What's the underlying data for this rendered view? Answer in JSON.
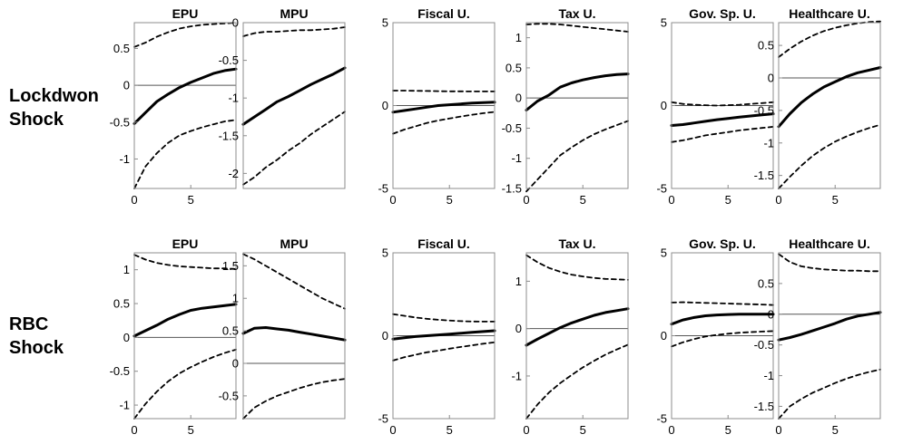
{
  "rows": [
    {
      "label_line1": "Lockdwon",
      "label_line2": "Shock"
    },
    {
      "label_line1": "RBC",
      "label_line2": "Shock"
    }
  ],
  "styles": {
    "line_color": "#000000",
    "zero_line_color": "#555555",
    "frame_color": "#8c8c8c"
  },
  "chart_data": [
    {
      "type": "line",
      "title": "EPU",
      "row": 0,
      "col": 0,
      "x": [
        0,
        1,
        2,
        3,
        4,
        5,
        6,
        7,
        8,
        9
      ],
      "xlim": [
        0,
        9
      ],
      "ylim": [
        -1.4,
        0.85
      ],
      "xticks": [
        "0",
        "5"
      ],
      "xtick_values": [
        0,
        5
      ],
      "yticks": [
        "-1",
        "-0.5",
        "0",
        "0.5"
      ],
      "ytick_values": [
        -1,
        -0.5,
        0,
        0.5
      ],
      "series": [
        {
          "style": "dashed",
          "values": [
            0.52,
            0.58,
            0.66,
            0.72,
            0.77,
            0.8,
            0.82,
            0.83,
            0.84,
            0.85
          ]
        },
        {
          "style": "solid",
          "values": [
            -0.52,
            -0.37,
            -0.22,
            -0.12,
            -0.03,
            0.04,
            0.1,
            0.16,
            0.2,
            0.22
          ]
        },
        {
          "style": "dashed",
          "values": [
            -1.4,
            -1.1,
            -0.92,
            -0.78,
            -0.68,
            -0.62,
            -0.57,
            -0.53,
            -0.49,
            -0.47
          ]
        }
      ]
    },
    {
      "type": "line",
      "title": "MPU",
      "row": 0,
      "col": 1,
      "x": [
        0,
        1,
        2,
        3,
        4,
        5,
        6,
        7,
        8,
        9
      ],
      "xlim": [
        0,
        9
      ],
      "ylim": [
        -2.2,
        0
      ],
      "xticks": [],
      "xtick_values": [],
      "yticks": [
        "-2",
        "-1.5",
        "-1",
        "-0.5",
        "0"
      ],
      "ytick_values": [
        -2,
        -1.5,
        -1,
        -0.5,
        0
      ],
      "series": [
        {
          "style": "dashed",
          "values": [
            -0.18,
            -0.14,
            -0.12,
            -0.12,
            -0.11,
            -0.1,
            -0.1,
            -0.09,
            -0.08,
            -0.06
          ]
        },
        {
          "style": "solid",
          "values": [
            -1.35,
            -1.25,
            -1.15,
            -1.05,
            -0.98,
            -0.9,
            -0.82,
            -0.75,
            -0.68,
            -0.6
          ]
        },
        {
          "style": "dashed",
          "values": [
            -2.15,
            -2.05,
            -1.92,
            -1.82,
            -1.7,
            -1.6,
            -1.48,
            -1.38,
            -1.28,
            -1.18
          ]
        }
      ]
    },
    {
      "type": "line",
      "title": "Fiscal U.",
      "row": 0,
      "col": 2,
      "x": [
        0,
        1,
        2,
        3,
        4,
        5,
        6,
        7,
        8,
        9
      ],
      "xlim": [
        0,
        9
      ],
      "ylim": [
        -5,
        5
      ],
      "xticks": [
        "0",
        "5"
      ],
      "xtick_values": [
        0,
        5
      ],
      "yticks": [
        "-5",
        "0",
        "5"
      ],
      "ytick_values": [
        -5,
        0,
        5
      ],
      "series": [
        {
          "style": "dashed",
          "values": [
            0.9,
            0.9,
            0.89,
            0.88,
            0.87,
            0.86,
            0.86,
            0.85,
            0.85,
            0.85
          ]
        },
        {
          "style": "solid",
          "values": [
            -0.4,
            -0.3,
            -0.2,
            -0.1,
            0.0,
            0.05,
            0.1,
            0.15,
            0.18,
            0.2
          ]
        },
        {
          "style": "dashed",
          "values": [
            -1.7,
            -1.45,
            -1.25,
            -1.05,
            -0.9,
            -0.78,
            -0.66,
            -0.56,
            -0.46,
            -0.38
          ]
        }
      ]
    },
    {
      "type": "line",
      "title": "Tax U.",
      "row": 0,
      "col": 3,
      "x": [
        0,
        1,
        2,
        3,
        4,
        5,
        6,
        7,
        8,
        9
      ],
      "xlim": [
        0,
        9
      ],
      "ylim": [
        -1.5,
        1.25
      ],
      "xticks": [
        "0",
        "5"
      ],
      "xtick_values": [
        0,
        5
      ],
      "yticks": [
        "-1.5",
        "-1",
        "-0.5",
        "0",
        "0.5",
        "1"
      ],
      "ytick_values": [
        -1.5,
        -1,
        -0.5,
        0,
        0.5,
        1
      ],
      "series": [
        {
          "style": "dashed",
          "values": [
            1.22,
            1.23,
            1.23,
            1.22,
            1.2,
            1.18,
            1.16,
            1.14,
            1.12,
            1.1
          ]
        },
        {
          "style": "solid",
          "values": [
            -0.2,
            -0.05,
            0.05,
            0.18,
            0.25,
            0.3,
            0.34,
            0.37,
            0.39,
            0.4
          ]
        },
        {
          "style": "dashed",
          "values": [
            -1.55,
            -1.35,
            -1.15,
            -0.95,
            -0.82,
            -0.7,
            -0.6,
            -0.52,
            -0.45,
            -0.38
          ]
        }
      ]
    },
    {
      "type": "line",
      "title": "Gov. Sp. U.",
      "row": 0,
      "col": 4,
      "x": [
        0,
        1,
        2,
        3,
        4,
        5,
        6,
        7,
        8,
        9
      ],
      "xlim": [
        0,
        9
      ],
      "ylim": [
        -5,
        5
      ],
      "xticks": [
        "0",
        "5"
      ],
      "xtick_values": [
        0,
        5
      ],
      "yticks": [
        "-5",
        "0",
        "5"
      ],
      "ytick_values": [
        -5,
        0,
        5
      ],
      "series": [
        {
          "style": "dashed",
          "values": [
            0.2,
            0.1,
            0.05,
            0.02,
            0.0,
            0.02,
            0.05,
            0.1,
            0.15,
            0.2
          ]
        },
        {
          "style": "solid",
          "values": [
            -1.2,
            -1.15,
            -1.05,
            -0.95,
            -0.85,
            -0.78,
            -0.7,
            -0.63,
            -0.56,
            -0.5
          ]
        },
        {
          "style": "dashed",
          "values": [
            -2.2,
            -2.1,
            -1.95,
            -1.8,
            -1.7,
            -1.6,
            -1.5,
            -1.42,
            -1.35,
            -1.28
          ]
        }
      ]
    },
    {
      "type": "line",
      "title": "Healthcare U.",
      "row": 0,
      "col": 5,
      "x": [
        0,
        1,
        2,
        3,
        4,
        5,
        6,
        7,
        8,
        9
      ],
      "xlim": [
        0,
        9
      ],
      "ylim": [
        -1.7,
        0.85
      ],
      "xticks": [
        "0",
        "5"
      ],
      "xtick_values": [
        0,
        5
      ],
      "yticks": [
        "-1.5",
        "-1",
        "-0.5",
        "0",
        "0.5"
      ],
      "ytick_values": [
        -1.5,
        -1,
        -0.5,
        0,
        0.5
      ],
      "series": [
        {
          "style": "dashed",
          "values": [
            0.32,
            0.45,
            0.56,
            0.65,
            0.72,
            0.77,
            0.81,
            0.84,
            0.86,
            0.87
          ]
        },
        {
          "style": "solid",
          "values": [
            -0.75,
            -0.55,
            -0.38,
            -0.25,
            -0.14,
            -0.06,
            0.02,
            0.08,
            0.12,
            0.16
          ]
        },
        {
          "style": "dashed",
          "values": [
            -1.7,
            -1.52,
            -1.35,
            -1.2,
            -1.08,
            -0.98,
            -0.9,
            -0.83,
            -0.77,
            -0.72
          ]
        }
      ]
    },
    {
      "type": "line",
      "title": "EPU",
      "row": 1,
      "col": 0,
      "x": [
        0,
        1,
        2,
        3,
        4,
        5,
        6,
        7,
        8,
        9
      ],
      "xlim": [
        0,
        9
      ],
      "ylim": [
        -1.2,
        1.25
      ],
      "xticks": [
        "0",
        "5"
      ],
      "xtick_values": [
        0,
        5
      ],
      "yticks": [
        "-1",
        "-0.5",
        "0",
        "0.5",
        "1"
      ],
      "ytick_values": [
        -1,
        -0.5,
        0,
        0.5,
        1
      ],
      "series": [
        {
          "style": "dashed",
          "values": [
            1.22,
            1.15,
            1.1,
            1.07,
            1.05,
            1.04,
            1.03,
            1.02,
            1.02,
            1.01
          ]
        },
        {
          "style": "solid",
          "values": [
            0.02,
            0.1,
            0.18,
            0.27,
            0.34,
            0.4,
            0.43,
            0.45,
            0.47,
            0.49
          ]
        },
        {
          "style": "dashed",
          "values": [
            -1.2,
            -0.98,
            -0.8,
            -0.65,
            -0.53,
            -0.44,
            -0.36,
            -0.29,
            -0.23,
            -0.18
          ]
        }
      ]
    },
    {
      "type": "line",
      "title": "MPU",
      "row": 1,
      "col": 1,
      "x": [
        0,
        1,
        2,
        3,
        4,
        5,
        6,
        7,
        8,
        9
      ],
      "xlim": [
        0,
        9
      ],
      "ylim": [
        -0.85,
        1.7
      ],
      "xticks": [],
      "xtick_values": [],
      "yticks": [
        "-0.5",
        "0",
        "0.5",
        "1",
        "1.5"
      ],
      "ytick_values": [
        -0.5,
        0,
        0.5,
        1,
        1.5
      ],
      "series": [
        {
          "style": "dashed",
          "values": [
            1.68,
            1.6,
            1.5,
            1.4,
            1.3,
            1.2,
            1.1,
            1.0,
            0.92,
            0.84
          ]
        },
        {
          "style": "solid",
          "values": [
            0.46,
            0.54,
            0.55,
            0.53,
            0.51,
            0.48,
            0.45,
            0.42,
            0.39,
            0.36
          ]
        },
        {
          "style": "dashed",
          "values": [
            -0.85,
            -0.68,
            -0.58,
            -0.5,
            -0.44,
            -0.38,
            -0.33,
            -0.29,
            -0.26,
            -0.24
          ]
        }
      ]
    },
    {
      "type": "line",
      "title": "Fiscal U.",
      "row": 1,
      "col": 2,
      "x": [
        0,
        1,
        2,
        3,
        4,
        5,
        6,
        7,
        8,
        9
      ],
      "xlim": [
        0,
        9
      ],
      "ylim": [
        -5,
        5
      ],
      "xticks": [
        "0",
        "5"
      ],
      "xtick_values": [
        0,
        5
      ],
      "yticks": [
        "-5",
        "0",
        "5"
      ],
      "ytick_values": [
        -5,
        0,
        5
      ],
      "series": [
        {
          "style": "dashed",
          "values": [
            1.3,
            1.2,
            1.1,
            1.02,
            0.96,
            0.92,
            0.88,
            0.86,
            0.85,
            0.85
          ]
        },
        {
          "style": "solid",
          "values": [
            -0.2,
            -0.12,
            -0.05,
            0.0,
            0.05,
            0.1,
            0.15,
            0.2,
            0.25,
            0.3
          ]
        },
        {
          "style": "dashed",
          "values": [
            -1.5,
            -1.3,
            -1.15,
            -1.0,
            -0.9,
            -0.78,
            -0.68,
            -0.58,
            -0.48,
            -0.4
          ]
        }
      ]
    },
    {
      "type": "line",
      "title": "Tax U.",
      "row": 1,
      "col": 3,
      "x": [
        0,
        1,
        2,
        3,
        4,
        5,
        6,
        7,
        8,
        9
      ],
      "xlim": [
        0,
        9
      ],
      "ylim": [
        -1.9,
        1.6
      ],
      "xticks": [
        "0",
        "5"
      ],
      "xtick_values": [
        0,
        5
      ],
      "yticks": [
        "-1",
        "0",
        "1"
      ],
      "ytick_values": [
        -1,
        0,
        1
      ],
      "series": [
        {
          "style": "dashed",
          "values": [
            1.55,
            1.4,
            1.28,
            1.2,
            1.14,
            1.1,
            1.07,
            1.05,
            1.04,
            1.03
          ]
        },
        {
          "style": "solid",
          "values": [
            -0.35,
            -0.22,
            -0.1,
            0.02,
            0.12,
            0.2,
            0.28,
            0.34,
            0.38,
            0.42
          ]
        },
        {
          "style": "dashed",
          "values": [
            -1.9,
            -1.6,
            -1.35,
            -1.15,
            -0.98,
            -0.82,
            -0.68,
            -0.55,
            -0.44,
            -0.34
          ]
        }
      ]
    },
    {
      "type": "line",
      "title": "Gov. Sp. U.",
      "row": 1,
      "col": 4,
      "x": [
        0,
        1,
        2,
        3,
        4,
        5,
        6,
        7,
        8,
        9
      ],
      "xlim": [
        0,
        9
      ],
      "ylim": [
        -5,
        5
      ],
      "xticks": [
        "0",
        "5"
      ],
      "xtick_values": [
        0,
        5
      ],
      "yticks": [
        "-5",
        "0",
        "5"
      ],
      "ytick_values": [
        -5,
        0,
        5
      ],
      "series": [
        {
          "style": "dashed",
          "values": [
            2.0,
            2.02,
            2.0,
            1.98,
            1.96,
            1.94,
            1.92,
            1.9,
            1.88,
            1.85
          ]
        },
        {
          "style": "solid",
          "values": [
            0.7,
            0.95,
            1.1,
            1.2,
            1.25,
            1.28,
            1.3,
            1.3,
            1.3,
            1.3
          ]
        },
        {
          "style": "dashed",
          "values": [
            -0.65,
            -0.4,
            -0.2,
            -0.05,
            0.05,
            0.12,
            0.18,
            0.22,
            0.25,
            0.28
          ]
        }
      ]
    },
    {
      "type": "line",
      "title": "Healthcare U.",
      "row": 1,
      "col": 5,
      "x": [
        0,
        1,
        2,
        3,
        4,
        5,
        6,
        7,
        8,
        9
      ],
      "xlim": [
        0,
        9
      ],
      "ylim": [
        -1.7,
        1.0
      ],
      "xticks": [
        "0",
        "5"
      ],
      "xtick_values": [
        0,
        5
      ],
      "yticks": [
        "-1.5",
        "-1",
        "-0.5",
        "0",
        "0.5"
      ],
      "ytick_values": [
        -1.5,
        -1,
        -0.5,
        0,
        0.5
      ],
      "series": [
        {
          "style": "dashed",
          "values": [
            0.98,
            0.85,
            0.78,
            0.75,
            0.73,
            0.72,
            0.71,
            0.71,
            0.7,
            0.7
          ]
        },
        {
          "style": "solid",
          "values": [
            -0.42,
            -0.38,
            -0.33,
            -0.27,
            -0.21,
            -0.15,
            -0.08,
            -0.03,
            0.0,
            0.03
          ]
        },
        {
          "style": "dashed",
          "values": [
            -1.7,
            -1.5,
            -1.38,
            -1.28,
            -1.2,
            -1.12,
            -1.05,
            -0.99,
            -0.94,
            -0.9
          ]
        }
      ]
    }
  ]
}
